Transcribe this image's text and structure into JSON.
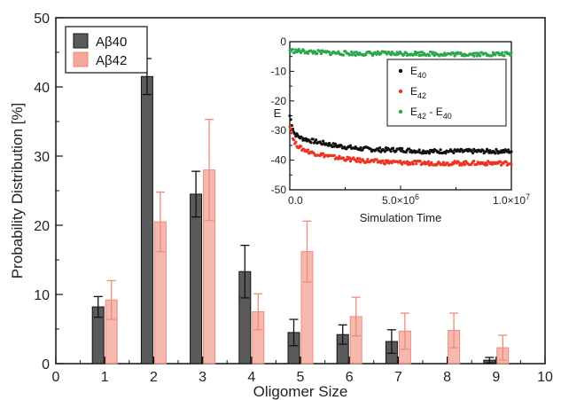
{
  "chart_data": [
    {
      "type": "bar",
      "xlabel": "Oligomer Size",
      "ylabel": "Probability Distribution [%]",
      "xlim": [
        0,
        10
      ],
      "ylim": [
        0,
        50
      ],
      "xticks": [
        "0",
        "1",
        "2",
        "3",
        "4",
        "5",
        "6",
        "7",
        "8",
        "9",
        "10"
      ],
      "yticks": [
        "0",
        "10",
        "20",
        "30",
        "40",
        "50"
      ],
      "categories": [
        1,
        2,
        3,
        4,
        5,
        6,
        7,
        8,
        9
      ],
      "legend_position": "top-left",
      "series": [
        {
          "name": "Aβ40",
          "color": "#5a5a5a",
          "values": [
            8.2,
            41.5,
            24.5,
            13.3,
            4.5,
            4.2,
            3.2,
            0,
            0.5
          ],
          "errors": [
            1.5,
            2.6,
            3.3,
            3.8,
            1.9,
            1.4,
            1.7,
            0,
            0.4
          ]
        },
        {
          "name": "Aβ42",
          "color": "#f08a7a",
          "values": [
            9.2,
            20.5,
            28.0,
            7.5,
            16.2,
            6.8,
            4.7,
            4.8,
            2.3
          ],
          "errors": [
            2.8,
            4.3,
            7.3,
            2.6,
            4.4,
            2.8,
            2.6,
            2.5,
            1.8
          ]
        }
      ]
    },
    {
      "type": "scatter",
      "xlabel": "Simulation Time",
      "ylabel": "E",
      "xlim": [
        0,
        10000000
      ],
      "ylim": [
        -50,
        0
      ],
      "xticks": [
        "0.0",
        "5.0×10",
        "1.0×10"
      ],
      "xtick_exponent": "6",
      "xtick_exponent_last": "7",
      "yticks": [
        "-50",
        "-40",
        "-30",
        "-20",
        "-10",
        "0"
      ],
      "legend_position": "top-right",
      "series": [
        {
          "name": "E",
          "sub": "40",
          "color": "#111111",
          "x": [
            0,
            200000,
            500000,
            1000000,
            2000000,
            3000000,
            4000000,
            5000000,
            6000000,
            7000000,
            8000000,
            9000000,
            10000000
          ],
          "y": [
            -25,
            -31,
            -32.5,
            -33.5,
            -35,
            -36,
            -36.5,
            -36.5,
            -37,
            -37,
            -37,
            -37,
            -37
          ]
        },
        {
          "name": "E",
          "sub": "42",
          "color": "#ee3322",
          "x": [
            0,
            200000,
            500000,
            1000000,
            2000000,
            3000000,
            4000000,
            5000000,
            6000000,
            7000000,
            8000000,
            9000000,
            10000000
          ],
          "y": [
            -28,
            -34,
            -36,
            -37.5,
            -39,
            -40,
            -40.5,
            -40.8,
            -41,
            -41,
            -41,
            -41,
            -41
          ]
        },
        {
          "name": "E",
          "sub": "42",
          "name2": " - E",
          "sub2": "40",
          "color": "#2aa84a",
          "x": [
            0,
            1000000,
            2000000,
            3000000,
            4000000,
            5000000,
            6000000,
            7000000,
            8000000,
            9000000,
            10000000
          ],
          "y": [
            -3,
            -3.5,
            -3.8,
            -4,
            -4,
            -4,
            -4,
            -4.2,
            -4.2,
            -4.2,
            -4.2
          ]
        }
      ]
    }
  ]
}
